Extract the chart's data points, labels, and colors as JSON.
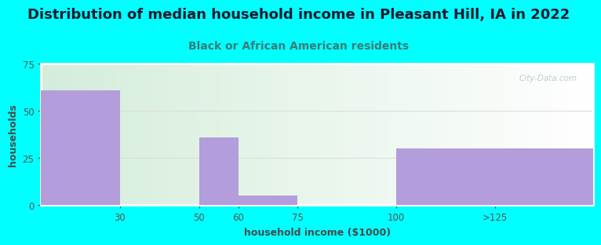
{
  "title": "Distribution of median household income in Pleasant Hill, IA in 2022",
  "subtitle": "Black or African American residents",
  "xlabel": "household income ($1000)",
  "ylabel": "households",
  "background_color": "#00FFFF",
  "plot_bg_color_left": "#d4edda",
  "plot_bg_color_right": "#ffffff",
  "bar_color": "#b39ddb",
  "categories": [
    "30",
    "50",
    "60",
    "75",
    "100",
    ">125"
  ],
  "values": [
    61,
    0,
    36,
    5,
    0,
    30
  ],
  "bar_lefts": [
    10,
    30,
    50,
    60,
    75,
    100
  ],
  "bar_rights": [
    30,
    50,
    60,
    75,
    100,
    150
  ],
  "ylim": [
    0,
    75
  ],
  "xlim": [
    10,
    150
  ],
  "yticks": [
    0,
    25,
    50,
    75
  ],
  "xtick_positions": [
    30,
    50,
    60,
    75,
    100,
    125
  ],
  "xtick_labels": [
    "30",
    "50",
    "60",
    "75",
    "100",
    ">125"
  ],
  "title_fontsize": 13,
  "subtitle_fontsize": 10,
  "axis_label_fontsize": 9,
  "tick_fontsize": 8.5,
  "title_color": "#1a1a2e",
  "subtitle_color": "#3d7a7a",
  "axis_label_color": "#4a4a4a",
  "tick_color": "#555555",
  "grid_color": "#dddddd",
  "watermark": "City-Data.com",
  "frame_color": "#ffffff"
}
